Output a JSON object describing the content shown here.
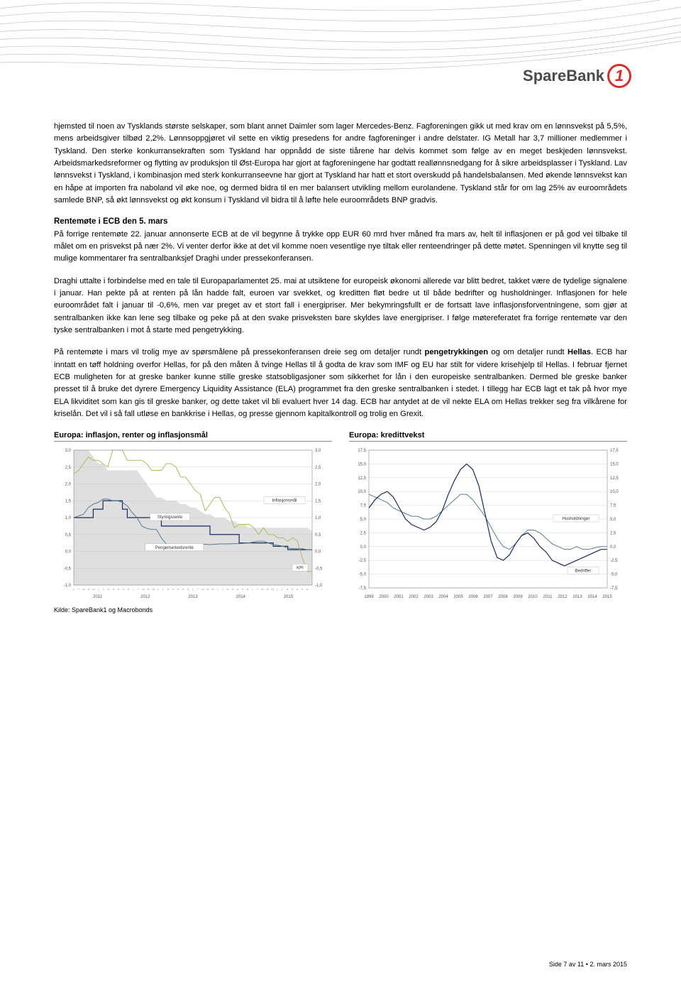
{
  "brand": {
    "name": "SpareBank",
    "mark": "1"
  },
  "paragraphs": {
    "p1": "hjemsted til noen av Tysklands største selskaper, som blant annet Daimler som lager Mercedes-Benz. Fagforeningen gikk ut med krav om en lønnsvekst på 5,5%, mens arbeidsgiver tilbød 2,2%. Lønnsoppgjøret vil sette en viktig presedens for andre fagforeninger i andre delstater. IG Metall har 3,7 millioner medlemmer i Tyskland. Den sterke konkurransekraften som Tyskland har oppnådd de siste tiårene har delvis kommet som følge av en meget beskjeden lønnsvekst. Arbeidsmarkedsreformer og flytting av produksjon til Øst-Europa har gjort at fagforeningene har godtatt reallønnsnedgang for å sikre arbeidsplasser i Tyskland. Lav lønnsvekst i Tyskland, i kombinasjon med sterk konkurranseevne har gjort at Tyskland har hatt et stort overskudd på handelsbalansen. Med økende lønnsvekst kan en håpe at importen fra naboland vil øke noe, og dermed bidra til en mer balansert utvikling mellom eurolandene. Tyskland står for om lag 25% av euroområdets samlede BNP, så økt lønnsvekst og økt konsum i Tyskland vil bidra til å løfte hele euroområdets BNP gradvis.",
    "h1": "Rentemøte i ECB den 5. mars",
    "p2": "På forrige rentemøte 22. januar annonserte ECB at de vil begynne å trykke opp EUR 60 mrd hver måned fra mars av, helt til inflasjonen er på god vei tilbake til målet om en prisvekst på nær 2%. Vi venter derfor ikke at det vil komme noen vesentlige nye tiltak eller renteendringer på dette møtet. Spenningen vil knytte seg til mulige kommentarer fra sentralbanksjef Draghi under pressekonferansen.",
    "p3": "Draghi uttalte i forbindelse med en tale til Europaparlamentet 25. mai at utsiktene for europeisk økonomi allerede var blitt bedret, takket være de tydelige signalene i januar. Han pekte på at renten på lån hadde falt, euroen var svekket, og kreditten fløt bedre ut til både bedrifter og husholdninger. Inflasjonen for hele euroområdet falt i januar til -0,6%, men var preget av et stort fall i energipriser. Mer bekymringsfullt er de fortsatt lave inflasjonsforventningene, som gjør at sentralbanken ikke kan lene seg tilbake og peke på at den svake prisveksten bare skyldes lave energipriser. I følge møtereferatet fra forrige rentemøte var den tyske sentralbanken i mot å starte med pengetrykking.",
    "p4a": "På rentemøte i mars vil trolig mye av spørsmålene på pressekonferansen dreie seg om detaljer rundt ",
    "p4b": "pengetrykkingen",
    "p4c": " og om detaljer rundt ",
    "p4d": "Hellas",
    "p4e": ". ECB har inntatt en tøff holdning overfor Hellas, for på den måten å tvinge Hellas til å godta de krav som IMF og EU har stilt for videre krisehjelp til Hellas. I februar fjernet ECB muligheten for at greske banker kunne stille greske statsobligasjoner som sikkerhet for lån i den europeiske sentralbanken. Dermed ble greske banker presset til å bruke det dyrere Emergency Liquidity Assistance (ELA) programmet fra den greske sentralbanken i stedet. I tillegg har ECB lagt et tak på hvor mye ELA likviditet som kan gis til greske banker, og dette taket vil bli evaluert hver 14 dag. ECB har antydet at de vil nekte ELA om Hellas trekker seg fra vilkårene for kriselån. Det vil i så fall utløse en bankkrise i Hellas, og presse gjennom kapitalkontroll og trolig en Grexit."
  },
  "chart1": {
    "title": "Europa: inflasjon, renter og inflasjonsmål",
    "type": "line",
    "ylim": [
      -1.0,
      3.0
    ],
    "ytick_step": 0.5,
    "yticks": [
      "-1,0",
      "-0,5",
      "0,0",
      "0,5",
      "1,0",
      "1,5",
      "2,0",
      "2,5",
      "3,0"
    ],
    "xyears": [
      "2011",
      "2012",
      "2013",
      "2014",
      "2015"
    ],
    "months": "j f m a m j j a s o n d",
    "series": {
      "inflasjonsmal": {
        "label": "Inflasjonsmål",
        "color": "#bfbfbf",
        "fill": true,
        "values": [
          3.0,
          3.0,
          3.0,
          3.0,
          2.8,
          2.6,
          2.6,
          2.4,
          2.4,
          2.4,
          2.4,
          2.4,
          2.4,
          2.4,
          2.2,
          2.0,
          1.8,
          1.6,
          1.6,
          1.5,
          1.5,
          1.5,
          1.4,
          1.4,
          1.3,
          1.3,
          1.2,
          1.1,
          1.1,
          1.0,
          1.0,
          1.0,
          0.9,
          0.9,
          0.8,
          0.8,
          0.7,
          0.7,
          0.7,
          0.7,
          0.7,
          0.7,
          0.7,
          0.7,
          0.7,
          0.7,
          0.7,
          0.7,
          0.7,
          0.6
        ]
      },
      "styringsrente": {
        "label": "Styringsrente",
        "color": "#1a2a5a",
        "values": [
          1.0,
          1.0,
          1.0,
          1.0,
          1.25,
          1.25,
          1.5,
          1.5,
          1.5,
          1.5,
          1.25,
          1.0,
          1.0,
          1.0,
          1.0,
          1.0,
          1.0,
          1.0,
          0.75,
          0.75,
          0.75,
          0.75,
          0.75,
          0.75,
          0.75,
          0.75,
          0.75,
          0.75,
          0.5,
          0.5,
          0.5,
          0.5,
          0.5,
          0.5,
          0.25,
          0.25,
          0.25,
          0.25,
          0.25,
          0.25,
          0.25,
          0.15,
          0.15,
          0.15,
          0.05,
          0.05,
          0.05,
          0.05,
          0.05,
          0.05
        ]
      },
      "pengemarkedsrente": {
        "label": "Pengemarkedsrente",
        "color": "#5b7a8f",
        "values": [
          1.0,
          1.05,
          1.1,
          1.3,
          1.4,
          1.45,
          1.55,
          1.55,
          1.5,
          1.5,
          1.45,
          1.35,
          1.15,
          1.0,
          0.75,
          0.68,
          0.65,
          0.65,
          0.4,
          0.22,
          0.2,
          0.2,
          0.19,
          0.19,
          0.2,
          0.21,
          0.21,
          0.21,
          0.2,
          0.21,
          0.22,
          0.22,
          0.22,
          0.23,
          0.23,
          0.24,
          0.25,
          0.28,
          0.3,
          0.3,
          0.25,
          0.2,
          0.18,
          0.15,
          0.1,
          0.08,
          0.08,
          0.08,
          0.05,
          0.05
        ]
      },
      "kpi": {
        "label": "KPI",
        "color": "#b0b860",
        "values": [
          2.3,
          2.4,
          2.6,
          2.8,
          2.7,
          2.7,
          2.6,
          2.5,
          3.0,
          3.0,
          3.0,
          2.7,
          2.7,
          2.7,
          2.7,
          2.6,
          2.4,
          2.4,
          2.4,
          2.6,
          2.6,
          2.5,
          2.2,
          2.2,
          2.0,
          1.8,
          1.7,
          1.2,
          1.4,
          1.6,
          1.6,
          1.3,
          1.1,
          0.7,
          0.8,
          0.8,
          0.8,
          0.7,
          0.5,
          0.7,
          0.5,
          0.5,
          0.4,
          0.4,
          0.3,
          0.4,
          0.3,
          -0.2,
          -0.6,
          -0.6
        ]
      }
    },
    "bg": "#ffffff",
    "grid_color": "#d6d6d6",
    "axis_fontsize": 6,
    "label_fontsize": 6
  },
  "chart2": {
    "title": "Europa: kredittvekst",
    "type": "line",
    "ylim": [
      -7.5,
      17.5
    ],
    "ytick_step": 2.5,
    "yticks": [
      "-7,5",
      "-5,0",
      "-2,5",
      "0,0",
      "2,5",
      "5,0",
      "7,5",
      "10,0",
      "12,5",
      "15,0",
      "17,5"
    ],
    "xyears": [
      "1999",
      "2000",
      "2001",
      "2002",
      "2003",
      "2004",
      "2005",
      "2006",
      "2007",
      "2008",
      "2009",
      "2010",
      "2011",
      "2012",
      "2013",
      "2014",
      "2015"
    ],
    "series": {
      "husholdninger": {
        "label": "Husholdninger",
        "color": "#5b7a8f",
        "values": [
          9.5,
          9.0,
          8.5,
          8.0,
          7.0,
          6.5,
          6.0,
          5.5,
          5.5,
          5.0,
          5.0,
          5.5,
          6.5,
          7.5,
          8.5,
          9.5,
          9.5,
          8.5,
          7.0,
          5.5,
          3.5,
          1.5,
          0.0,
          -0.5,
          0.5,
          2.0,
          3.0,
          3.0,
          2.5,
          1.5,
          0.5,
          0.0,
          -0.5,
          -0.5,
          0.0,
          -0.5,
          -0.5,
          -0.2,
          0.0,
          0.0
        ]
      },
      "bedrifter": {
        "label": "Bedrifter",
        "color": "#1a2a5a",
        "values": [
          7.0,
          8.5,
          9.5,
          10.0,
          9.0,
          7.0,
          5.0,
          4.0,
          3.5,
          3.0,
          3.5,
          4.5,
          6.5,
          9.5,
          12.0,
          14.0,
          15.0,
          14.0,
          11.0,
          6.0,
          1.0,
          -2.0,
          -2.5,
          -1.5,
          0.5,
          2.0,
          2.5,
          1.5,
          0.0,
          -1.0,
          -2.5,
          -3.0,
          -3.5,
          -3.0,
          -2.5,
          -2.0,
          -1.5,
          -1.0,
          -0.5,
          -0.5
        ]
      }
    },
    "bg": "#ffffff",
    "grid_color": "#d6d6d6",
    "axis_fontsize": 6,
    "label_fontsize": 6
  },
  "source": "Kilde: SpareBank1 og Macrobonds",
  "footer": {
    "page": "Side 7 av 11",
    "bullet": "•",
    "date": "2. mars 2015"
  }
}
